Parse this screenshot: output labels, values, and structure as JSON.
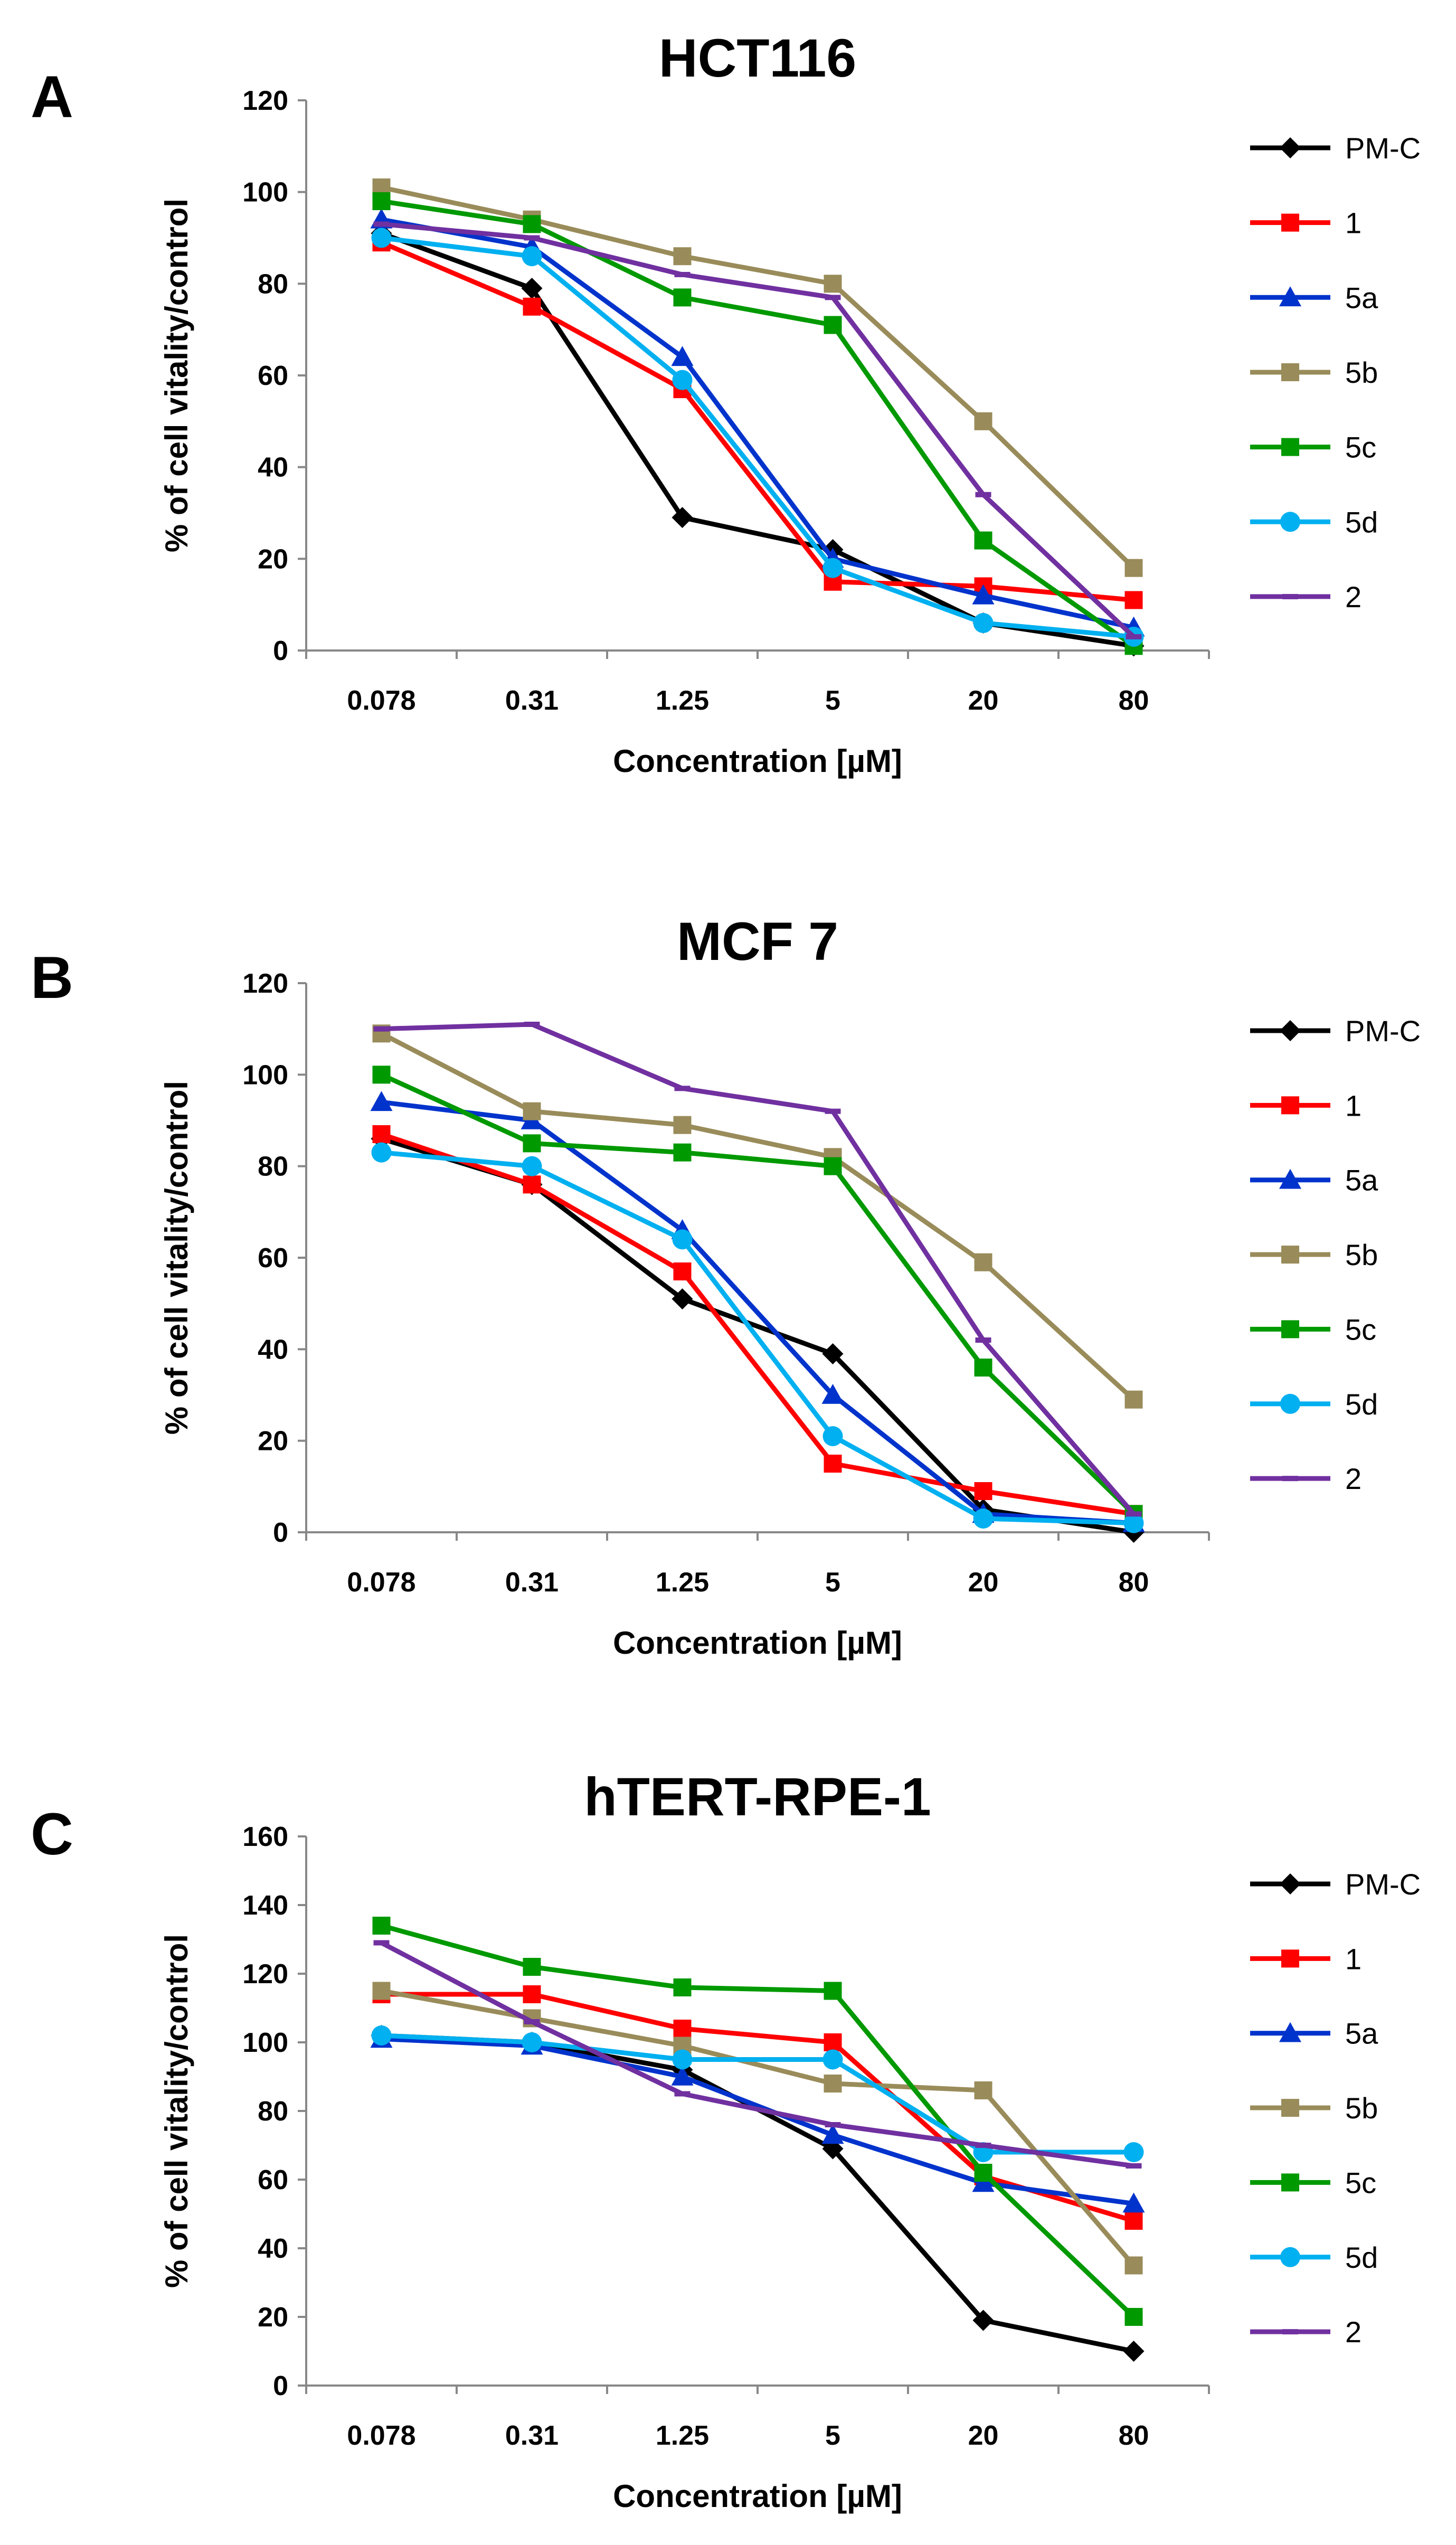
{
  "figure": {
    "description_free": true
  },
  "legend": [
    "PM-C",
    "1",
    "5a",
    "5b",
    "5c",
    "5d",
    "2"
  ],
  "series_style": [
    {
      "name": "PM-C",
      "color": "#000000",
      "marker": "diamond"
    },
    {
      "name": "1",
      "color": "#ff0000",
      "marker": "square"
    },
    {
      "name": "5a",
      "color": "#0033cc",
      "marker": "triangle"
    },
    {
      "name": "5b",
      "color": "#998c5a",
      "marker": "square"
    },
    {
      "name": "5c",
      "color": "#009900",
      "marker": "square"
    },
    {
      "name": "5d",
      "color": "#00b0f0",
      "marker": "circle"
    },
    {
      "name": "2",
      "color": "#7030a0",
      "marker": "dash"
    }
  ],
  "chart_data": [
    {
      "type": "line",
      "panel": "A",
      "title": "HCT116",
      "xlabel": "Concentration [µM]",
      "ylabel": "% of cell vitality/control",
      "categories": [
        "0.078",
        "0.31",
        "1.25",
        "5",
        "20",
        "80"
      ],
      "ylim": [
        0,
        120
      ],
      "yticks": [
        0,
        20,
        40,
        60,
        80,
        100,
        120
      ],
      "legend_position": "right",
      "series": [
        {
          "name": "PM-C",
          "values": [
            91,
            79,
            29,
            22,
            6,
            1
          ]
        },
        {
          "name": "1",
          "values": [
            89,
            75,
            57,
            15,
            14,
            11
          ]
        },
        {
          "name": "5a",
          "values": [
            94,
            88,
            64,
            20,
            12,
            5
          ]
        },
        {
          "name": "5b",
          "values": [
            101,
            94,
            86,
            80,
            50,
            18
          ]
        },
        {
          "name": "5c",
          "values": [
            98,
            93,
            77,
            71,
            24,
            1
          ]
        },
        {
          "name": "5d",
          "values": [
            90,
            86,
            59,
            18,
            6,
            3
          ]
        },
        {
          "name": "2",
          "values": [
            93,
            90,
            82,
            77,
            34,
            3
          ]
        }
      ]
    },
    {
      "type": "line",
      "panel": "B",
      "title": "MCF 7",
      "xlabel": "Concentration [µM]",
      "ylabel": "% of cell vitality/control",
      "categories": [
        "0.078",
        "0.31",
        "1.25",
        "5",
        "20",
        "80"
      ],
      "ylim": [
        0,
        120
      ],
      "yticks": [
        0,
        20,
        40,
        60,
        80,
        100,
        120
      ],
      "legend_position": "right",
      "series": [
        {
          "name": "PM-C",
          "values": [
            86,
            76,
            51,
            39,
            5,
            0
          ]
        },
        {
          "name": "1",
          "values": [
            87,
            76,
            57,
            15,
            9,
            4
          ]
        },
        {
          "name": "5a",
          "values": [
            94,
            90,
            66,
            30,
            4,
            2
          ]
        },
        {
          "name": "5b",
          "values": [
            109,
            92,
            89,
            82,
            59,
            29
          ]
        },
        {
          "name": "5c",
          "values": [
            100,
            85,
            83,
            80,
            36,
            4
          ]
        },
        {
          "name": "5d",
          "values": [
            83,
            80,
            64,
            21,
            3,
            2
          ]
        },
        {
          "name": "2",
          "values": [
            110,
            111,
            97,
            92,
            42,
            4
          ]
        }
      ]
    },
    {
      "type": "line",
      "panel": "C",
      "title": "hTERT-RPE-1",
      "xlabel": "Concentration [µM]",
      "ylabel": "% of cell vitality/control",
      "categories": [
        "0.078",
        "0.31",
        "1.25",
        "5",
        "20",
        "80"
      ],
      "ylim": [
        0,
        160
      ],
      "yticks": [
        0,
        20,
        40,
        60,
        80,
        100,
        120,
        140,
        160
      ],
      "legend_position": "right",
      "series": [
        {
          "name": "PM-C",
          "values": [
            102,
            100,
            92,
            69,
            19,
            10
          ]
        },
        {
          "name": "1",
          "values": [
            114,
            114,
            104,
            100,
            61,
            48
          ]
        },
        {
          "name": "5a",
          "values": [
            101,
            99,
            90,
            73,
            59,
            53
          ]
        },
        {
          "name": "5b",
          "values": [
            115,
            107,
            99,
            88,
            86,
            35
          ]
        },
        {
          "name": "5c",
          "values": [
            134,
            122,
            116,
            115,
            62,
            20
          ]
        },
        {
          "name": "5d",
          "values": [
            102,
            100,
            95,
            95,
            68,
            68
          ]
        },
        {
          "name": "2",
          "values": [
            129,
            106,
            85,
            76,
            70,
            64
          ]
        }
      ]
    }
  ]
}
